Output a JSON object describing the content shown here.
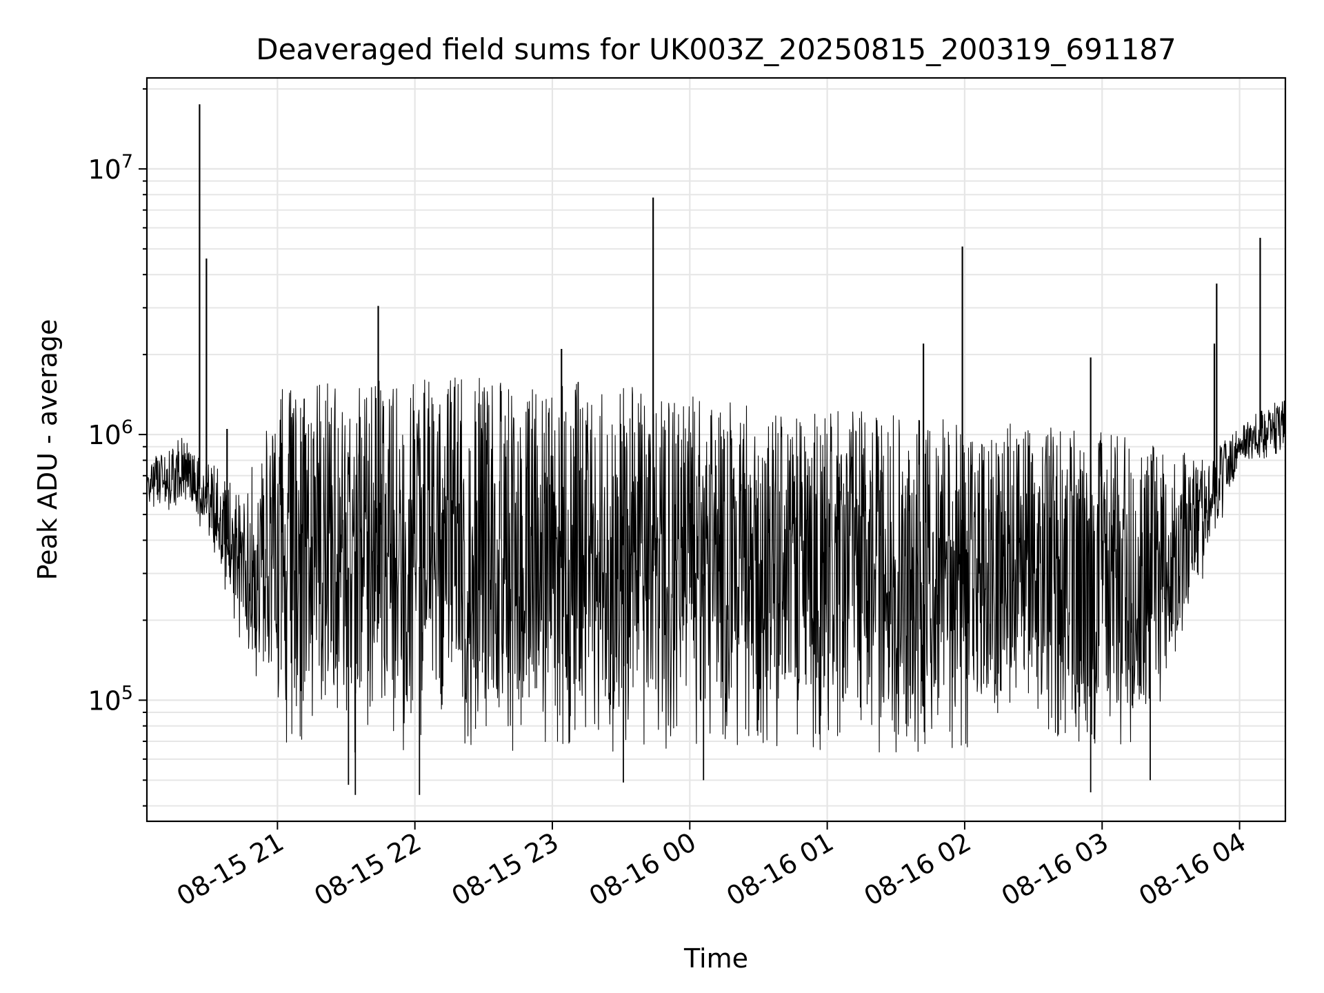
{
  "chart_data": {
    "type": "line",
    "title": "Deaveraged field sums for UK003Z_20250815_200319_691187",
    "xlabel": "Time",
    "ylabel": "Peak ADU - average",
    "yscale": "log",
    "ylim": [
      35000,
      22000000
    ],
    "xlim": [
      "2025-08-15 20:03",
      "2025-08-16 04:20"
    ],
    "grid": true,
    "line_color": "#000000",
    "x_ticks": [
      {
        "value": "2025-08-15 21:00",
        "label": "08-15 21"
      },
      {
        "value": "2025-08-15 22:00",
        "label": "08-15 22"
      },
      {
        "value": "2025-08-15 23:00",
        "label": "08-15 23"
      },
      {
        "value": "2025-08-16 00:00",
        "label": "08-16 00"
      },
      {
        "value": "2025-08-16 01:00",
        "label": "08-16 01"
      },
      {
        "value": "2025-08-16 02:00",
        "label": "08-16 02"
      },
      {
        "value": "2025-08-16 03:00",
        "label": "08-16 03"
      },
      {
        "value": "2025-08-16 04:00",
        "label": "08-16 04"
      }
    ],
    "y_ticks": [
      {
        "value": 100000,
        "base": "10",
        "exp": "5"
      },
      {
        "value": 1000000,
        "base": "10",
        "exp": "6"
      },
      {
        "value": 10000000,
        "base": "10",
        "exp": "7"
      }
    ],
    "band_profile": {
      "note_x": "time",
      "points": [
        {
          "x": "2025-08-15 20:03",
          "low": 520000,
          "high": 800000
        },
        {
          "x": "2025-08-15 20:20",
          "low": 520000,
          "high": 1000000
        },
        {
          "x": "2025-08-15 20:30",
          "low": 400000,
          "high": 800000
        },
        {
          "x": "2025-08-15 20:45",
          "low": 150000,
          "high": 600000
        },
        {
          "x": "2025-08-15 21:00",
          "low": 70000,
          "high": 1500000
        },
        {
          "x": "2025-08-15 21:30",
          "low": 62000,
          "high": 1600000
        },
        {
          "x": "2025-08-15 22:30",
          "low": 62000,
          "high": 1650000
        },
        {
          "x": "2025-08-15 23:30",
          "low": 62000,
          "high": 1550000
        },
        {
          "x": "2025-08-16 00:30",
          "low": 65000,
          "high": 1300000
        },
        {
          "x": "2025-08-16 01:30",
          "low": 62000,
          "high": 1200000
        },
        {
          "x": "2025-08-16 02:30",
          "low": 68000,
          "high": 1100000
        },
        {
          "x": "2025-08-16 03:20",
          "low": 65000,
          "high": 1000000
        },
        {
          "x": "2025-08-16 03:45",
          "low": 300000,
          "high": 800000
        },
        {
          "x": "2025-08-16 04:00",
          "low": 750000,
          "high": 1100000
        },
        {
          "x": "2025-08-16 04:20",
          "low": 850000,
          "high": 1400000
        }
      ]
    },
    "spikes": [
      {
        "x": "2025-08-15 20:26",
        "y": 17500000
      },
      {
        "x": "2025-08-15 20:29",
        "y": 4600000
      },
      {
        "x": "2025-08-15 20:38",
        "y": 1050000
      },
      {
        "x": "2025-08-15 21:44",
        "y": 3050000
      },
      {
        "x": "2025-08-15 23:04",
        "y": 2100000
      },
      {
        "x": "2025-08-15 23:44",
        "y": 7800000
      },
      {
        "x": "2025-08-16 01:42",
        "y": 2200000
      },
      {
        "x": "2025-08-16 01:59",
        "y": 5100000
      },
      {
        "x": "2025-08-16 02:55",
        "y": 1950000
      },
      {
        "x": "2025-08-16 03:49",
        "y": 2200000
      },
      {
        "x": "2025-08-16 03:50",
        "y": 3700000
      },
      {
        "x": "2025-08-16 04:09",
        "y": 5500000
      }
    ],
    "dips": [
      {
        "x": "2025-08-15 21:31",
        "y": 48000
      },
      {
        "x": "2025-08-15 21:34",
        "y": 44000
      },
      {
        "x": "2025-08-15 22:02",
        "y": 44000
      },
      {
        "x": "2025-08-15 23:31",
        "y": 49000
      },
      {
        "x": "2025-08-16 00:06",
        "y": 50000
      },
      {
        "x": "2025-08-16 02:55",
        "y": 45000
      },
      {
        "x": "2025-08-16 03:21",
        "y": 50000
      }
    ]
  }
}
